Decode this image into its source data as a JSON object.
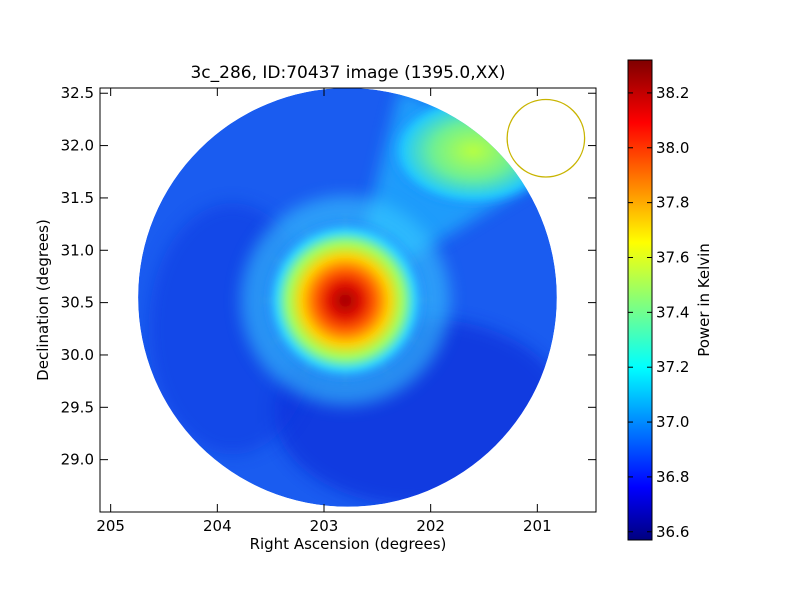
{
  "chart_data": {
    "type": "heatmap",
    "title": "3c_286, ID:70437 image (1395.0,XX)",
    "xlabel": "Right Ascension (degrees)",
    "ylabel": "Declination (degrees)",
    "xlim": [
      205.1,
      200.45
    ],
    "ylim": [
      28.5,
      32.55
    ],
    "x_ticks": [
      205,
      204,
      203,
      202,
      201
    ],
    "y_ticks": [
      29.0,
      29.5,
      30.0,
      30.5,
      31.0,
      31.5,
      32.0,
      32.5
    ],
    "x_tick_labels": [
      "205",
      "204",
      "203",
      "202",
      "201"
    ],
    "y_tick_labels": [
      "29.0",
      "29.5",
      "30.0",
      "30.5",
      "31.0",
      "31.5",
      "32.0",
      "32.5"
    ],
    "colorbar": {
      "label": "Power in Kelvin",
      "range": [
        36.57,
        38.32
      ],
      "ticks": [
        36.6,
        36.8,
        37.0,
        37.2,
        37.4,
        37.6,
        37.8,
        38.0,
        38.2
      ],
      "tick_labels": [
        "36.6",
        "36.8",
        "37.0",
        "37.2",
        "37.4",
        "37.6",
        "37.8",
        "38.0",
        "38.2"
      ],
      "colormap": "jet"
    },
    "map": {
      "center_ra": 202.78,
      "center_dec": 30.55,
      "radius_deg": 2.0,
      "background_level": 36.9,
      "source": {
        "ra": 202.8,
        "dec": 30.52,
        "peak": 38.3
      },
      "bright_region": {
        "ra": 201.6,
        "dec": 31.95,
        "level": 37.45
      },
      "marker_circle": {
        "ra": 200.92,
        "dec": 32.07,
        "radius_deg": 0.37,
        "color": "#c8b400"
      }
    },
    "grid": false
  }
}
